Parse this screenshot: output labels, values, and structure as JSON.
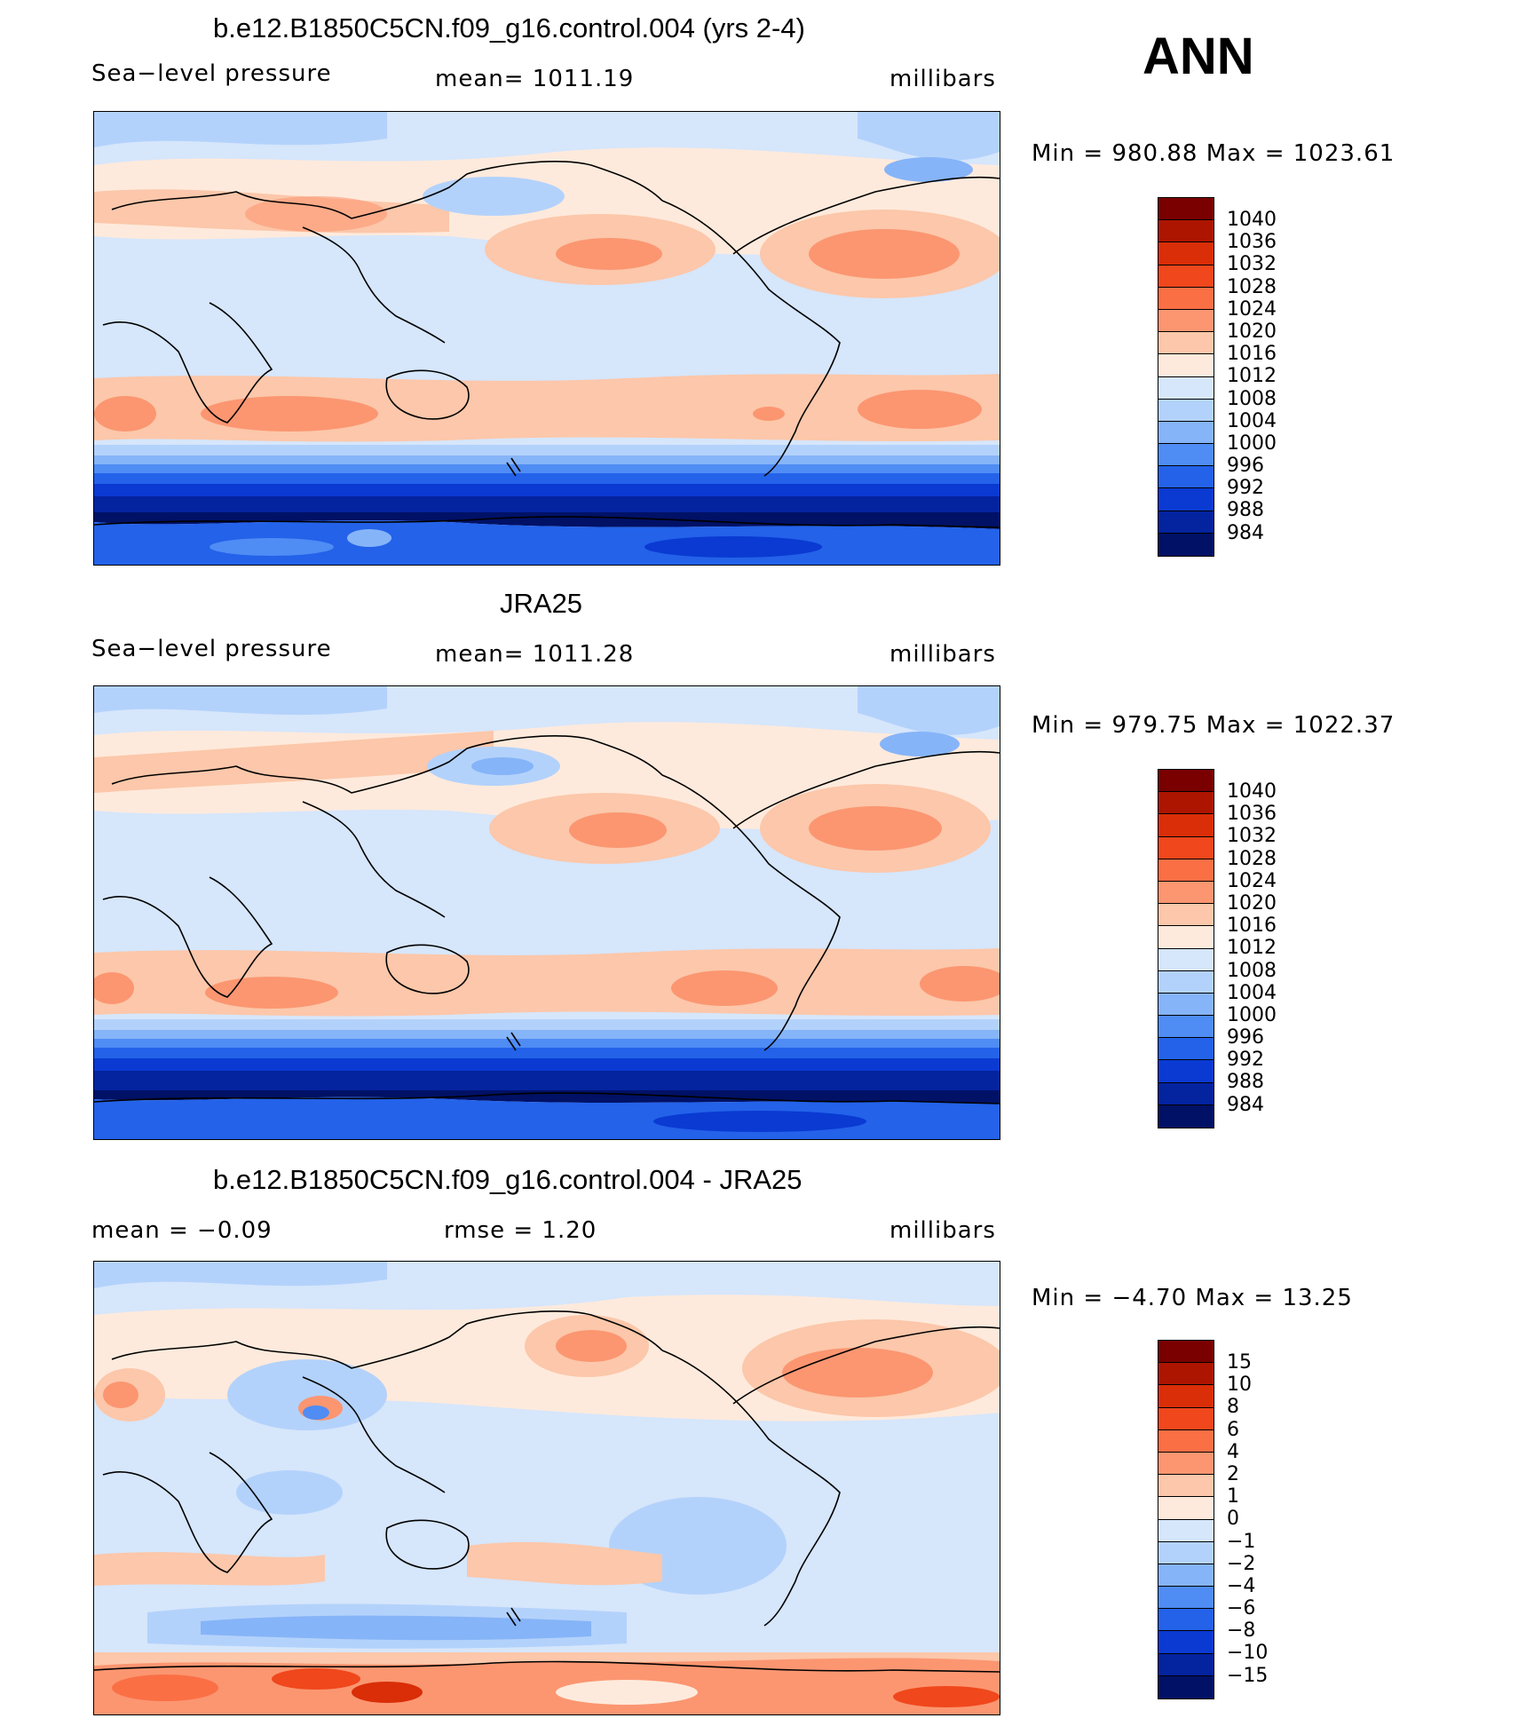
{
  "season": "ANN",
  "panels": [
    {
      "title": "b.e12.B1850C5CN.f09_g16.control.004 (yrs 2-4)",
      "left": "Sea−level pressure",
      "middle": "mean=  1011.19",
      "right": "millibars",
      "minmax": "Min  =  980.88  Max  =  1023.61",
      "levels": [
        "1040",
        "1036",
        "1032",
        "1028",
        "1024",
        "1020",
        "1016",
        "1012",
        "1008",
        "1004",
        "1000",
        "996",
        "992",
        "988",
        "984"
      ]
    },
    {
      "title": "JRA25",
      "left": "Sea−level pressure",
      "middle": "mean=  1011.28",
      "right": "millibars",
      "minmax": "Min  =  979.75  Max  =  1022.37",
      "levels": [
        "1040",
        "1036",
        "1032",
        "1028",
        "1024",
        "1020",
        "1016",
        "1012",
        "1008",
        "1004",
        "1000",
        "996",
        "992",
        "988",
        "984"
      ]
    },
    {
      "title": "b.e12.B1850C5CN.f09_g16.control.004 - JRA25",
      "left": "mean  =    −0.09",
      "middle": "rmse  =     1.20",
      "right": "millibars",
      "minmax": "Min  =    −4.70  Max  =    13.25",
      "levels": [
        "15",
        "10",
        "8",
        "6",
        "4",
        "2",
        "1",
        "0",
        "−1",
        "−2",
        "−4",
        "−6",
        "−8",
        "−10",
        "−15"
      ]
    }
  ],
  "colorbar_colors": [
    "#7a0000",
    "#ad1500",
    "#d92e08",
    "#f0471c",
    "#fb6f45",
    "#fb9671",
    "#fcc7aa",
    "#feeadc",
    "#d6e6fb",
    "#b3d2fb",
    "#86b4f8",
    "#4f8cf4",
    "#2362e9",
    "#0a3ad2",
    "#04239f",
    "#001166"
  ]
}
